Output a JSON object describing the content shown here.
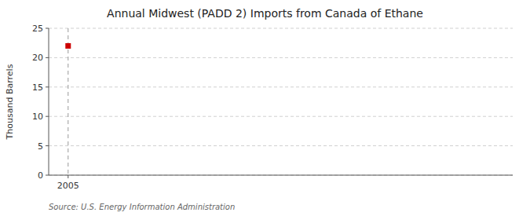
{
  "chart_data": {
    "type": "scatter",
    "title": "Annual Midwest (PADD 2) Imports from Canada of Ethane",
    "ylabel": "Thousand Barrels",
    "source": "Source: U.S. Energy Information Administration",
    "x": [
      2005
    ],
    "values": [
      22
    ],
    "color": "#cc0000",
    "marker": "square",
    "xlim": [
      2004.3,
      2021
    ],
    "ylim": [
      0,
      25
    ],
    "xticks": [
      2005
    ],
    "yticks": [
      0,
      5,
      10,
      15,
      20,
      25
    ],
    "grid": true,
    "vline": 2005
  }
}
